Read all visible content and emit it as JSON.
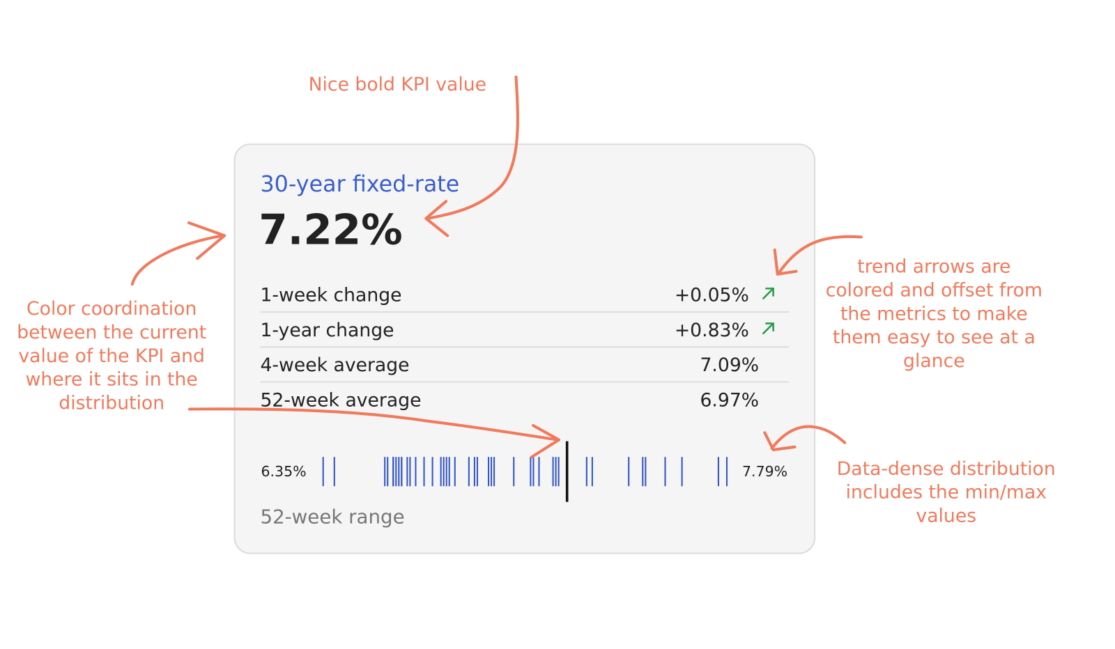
{
  "card": {
    "title": "30-year fixed-rate",
    "kpi": {
      "value": 7.22,
      "label": "7.22%"
    },
    "metrics": [
      {
        "label": "1-week change",
        "value": "+0.05%",
        "trend": "up"
      },
      {
        "label": "1-year change",
        "value": "+0.83%",
        "trend": "up"
      },
      {
        "label": "4-week average",
        "value": "7.09%"
      },
      {
        "label": "52-week average",
        "value": "6.97%"
      }
    ],
    "distribution": {
      "min": {
        "value": 6.35,
        "label": "6.35%"
      },
      "max": {
        "value": 7.79,
        "label": "7.79%"
      },
      "values": [
        6.35,
        6.39,
        6.57,
        6.58,
        6.6,
        6.6,
        6.61,
        6.62,
        6.63,
        6.63,
        6.65,
        6.66,
        6.68,
        6.71,
        6.74,
        6.77,
        6.78,
        6.79,
        6.8,
        6.82,
        6.87,
        6.89,
        6.9,
        6.94,
        6.95,
        6.96,
        7.03,
        7.09,
        7.1,
        7.12,
        7.17,
        7.18,
        7.19,
        7.29,
        7.31,
        7.44,
        7.49,
        7.5,
        7.57,
        7.63,
        7.76,
        7.79
      ],
      "color": "#2f55c4",
      "range_label": "52-week range"
    },
    "trend_color": "#2a9d4a"
  },
  "annotations": {
    "kpi": [
      "Nice bold KPI value"
    ],
    "color": [
      "Color coordination",
      "between the current",
      "value of the KPI and",
      "where it sits in the",
      "distribution"
    ],
    "trend": [
      "trend arrows are",
      "colored and offset from",
      "the metrics to make",
      "them easy to see at a",
      "glance"
    ],
    "distribution": [
      "Data-dense distribution",
      "includes the min/max",
      "values"
    ]
  }
}
